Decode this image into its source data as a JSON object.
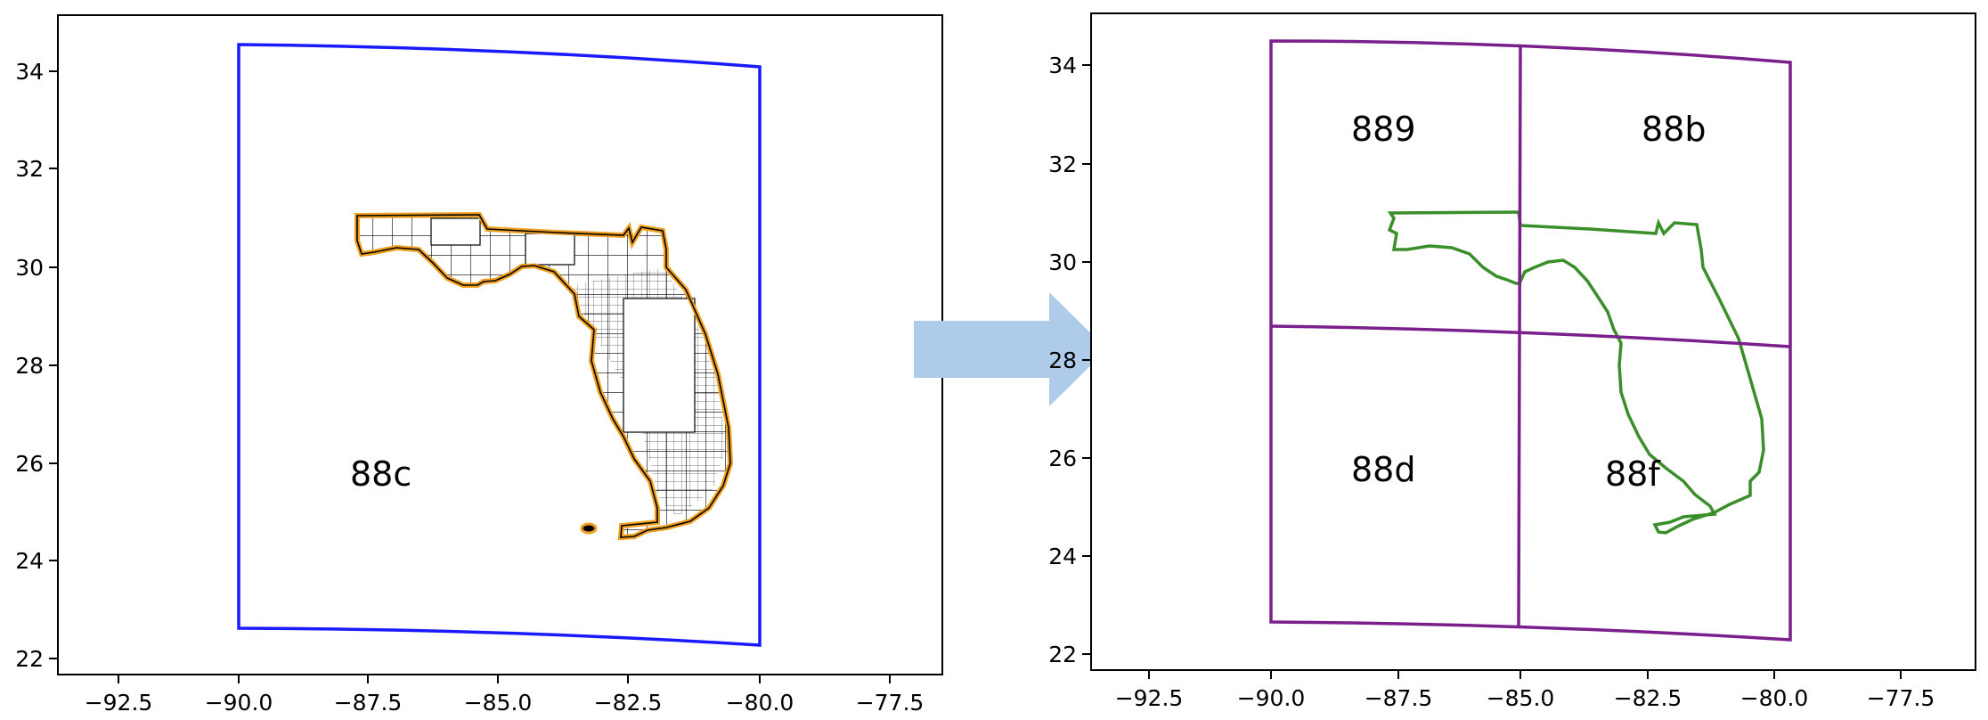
{
  "left_panel": {
    "x_ticks": [
      "−92.5",
      "−90.0",
      "−87.5",
      "−85.0",
      "−82.5",
      "−80.0",
      "−77.5"
    ],
    "y_ticks": [
      "22",
      "24",
      "26",
      "28",
      "30",
      "32",
      "34"
    ],
    "region_label": "88c",
    "bbox_color": "#1a1aff",
    "outline_color": "#f0a020"
  },
  "right_panel": {
    "x_ticks": [
      "−92.5",
      "−90.0",
      "−87.5",
      "−85.0",
      "−82.5",
      "−80.0",
      "−77.5"
    ],
    "y_ticks": [
      "22",
      "24",
      "26",
      "28",
      "30",
      "32",
      "34"
    ],
    "region_labels": [
      "889",
      "88b",
      "88d",
      "88f"
    ],
    "grid_color": "#7a1f8c",
    "outline_color": "#3a8f2a"
  },
  "arrow_color": "#aecbea"
}
